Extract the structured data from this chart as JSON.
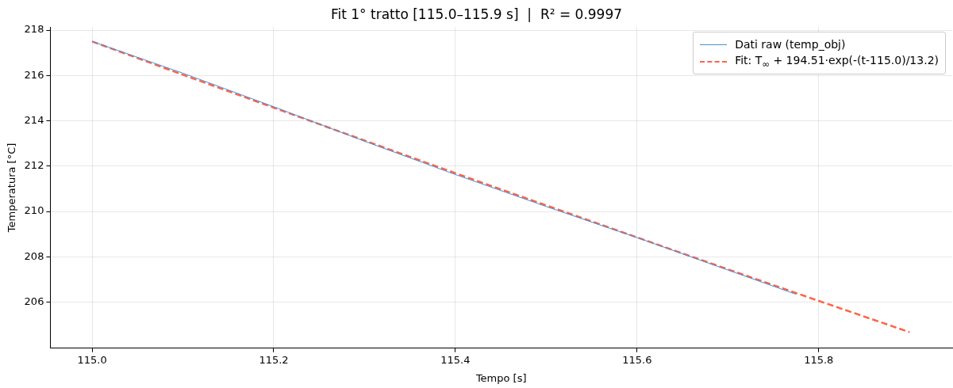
{
  "chart_data": {
    "type": "line",
    "title": "Fit 1° tratto [115.0–115.9 s]  |  R² = 0.9997",
    "xlabel": "Tempo [s]",
    "ylabel": "Temperatura [°C]",
    "series": [
      {
        "name": "Dati raw (temp_obj)",
        "color": "#4a90d9",
        "line_style": "solid",
        "x": [
          115.0,
          115.1,
          115.2,
          115.3,
          115.4,
          115.5,
          115.6,
          115.7,
          115.775
        ],
        "values": [
          217.5,
          216.1,
          214.62,
          213.1,
          211.63,
          210.22,
          208.85,
          207.42,
          206.35
        ]
      },
      {
        "name": "Fit: T$_{∞}$ + 194.51·exp(-(t-115.0)/13.2)",
        "color": "#ff6347",
        "line_style": "dashed",
        "x": [
          115.0,
          115.1,
          115.2,
          115.3,
          115.4,
          115.5,
          115.6,
          115.7,
          115.8,
          115.9
        ],
        "values": [
          217.5,
          216.03,
          214.58,
          213.13,
          211.69,
          210.27,
          208.86,
          207.45,
          206.06,
          204.68
        ]
      }
    ],
    "xlim": [
      114.954,
      115.947
    ],
    "ylim": [
      203.97,
      218.14
    ],
    "xticks": [
      {
        "value": 115.0,
        "label": "115.0"
      },
      {
        "value": 115.2,
        "label": "115.2"
      },
      {
        "value": 115.4,
        "label": "115.4"
      },
      {
        "value": 115.6,
        "label": "115.6"
      },
      {
        "value": 115.8,
        "label": "115.8"
      }
    ],
    "yticks": [
      206,
      208,
      210,
      212,
      214,
      216,
      218
    ],
    "grid": true,
    "legend": "top right",
    "marker": "none"
  }
}
